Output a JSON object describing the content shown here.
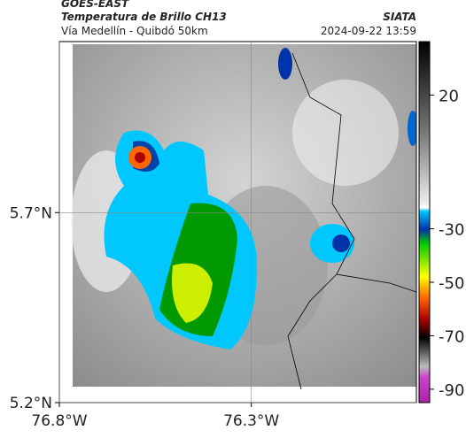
{
  "header": {
    "product": "GOES-EAST",
    "title": "Temperatura de Brillo CH13",
    "subtitle": "Vía Medellín - Quibdó 50km",
    "source": "SIATA",
    "datetime": "2024-09-22 13:59"
  },
  "map": {
    "xlim": [
      -76.8,
      -75.87
    ],
    "ylim": [
      5.2,
      6.15
    ],
    "xticks": [
      {
        "value": -76.8,
        "label": "76.8°W"
      },
      {
        "value": -76.3,
        "label": "76.3°W"
      }
    ],
    "yticks": [
      {
        "value": 5.2,
        "label": "5.2°N"
      },
      {
        "value": 5.7,
        "label": "5.7°N"
      }
    ],
    "grid": true
  },
  "colorbar": {
    "clim": [
      -95,
      40
    ],
    "ticks": [
      20,
      -30,
      -50,
      -70,
      -90
    ]
  }
}
